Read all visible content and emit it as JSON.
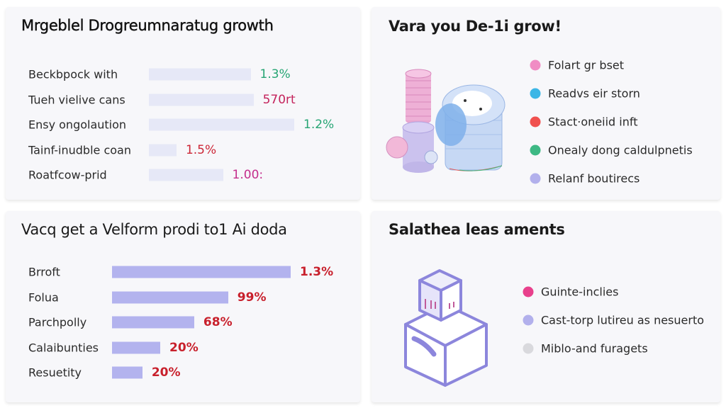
{
  "chart_data": [
    {
      "type": "bar",
      "title": "Mrgeblel Drogreumnaratug growth",
      "orientation": "horizontal",
      "categories": [
        "Beckbpock with",
        "Tueh vielive cans",
        "Ensy ongolaution",
        "Tainf-inudble coan",
        "Roatfcow-prid"
      ],
      "value_labels": [
        "1.3%",
        "570rt",
        "1.2%",
        "1.5%",
        "1.00:"
      ],
      "bar_levels": [
        0.7,
        0.72,
        1.0,
        0.19,
        0.51
      ],
      "value_colors": [
        "#27a574",
        "#c4235c",
        "#27a574",
        "#cc2636",
        "#c42e8c"
      ],
      "bar_color": "#e6e8f7"
    },
    {
      "type": "bar",
      "title": "Vacq get a Velform prodi to1 Ai doda",
      "orientation": "horizontal",
      "categories": [
        "Brroft",
        "Folua",
        "Parchpolly",
        "Calaibunties",
        "Resuetity"
      ],
      "value_labels": [
        "1.3%",
        "99%",
        "68%",
        "20%",
        "20%"
      ],
      "bar_levels": [
        1.0,
        0.65,
        0.46,
        0.27,
        0.17
      ],
      "value_color": "#c8202c",
      "bar_color": "#b3b3ee"
    }
  ],
  "card_topright": {
    "title": "Vara you De-1i grow!",
    "illustration": "coin-stacks-icon",
    "legend": [
      {
        "label": "Folart gr bset",
        "color": "#f08cc4"
      },
      {
        "label": "Readvs eir storn",
        "color": "#3cb6e6"
      },
      {
        "label": "Stact·oneiid inft",
        "color": "#f0504e"
      },
      {
        "label": "Onealy dong caldulpnetis",
        "color": "#3db884"
      },
      {
        "label": "Relanf boutirecs",
        "color": "#b2b0ec"
      }
    ]
  },
  "card_bottomright": {
    "title": "Salathea leas aments",
    "illustration": "stacked-boxes-icon",
    "legend": [
      {
        "label": "Guinte-inclies",
        "color": "#e8408c"
      },
      {
        "label": "Cast-torp lutireu as nesuerto",
        "color": "#b2b0ec"
      },
      {
        "label": "Miblo-and furagets",
        "color": "#d9d9dd"
      }
    ]
  }
}
